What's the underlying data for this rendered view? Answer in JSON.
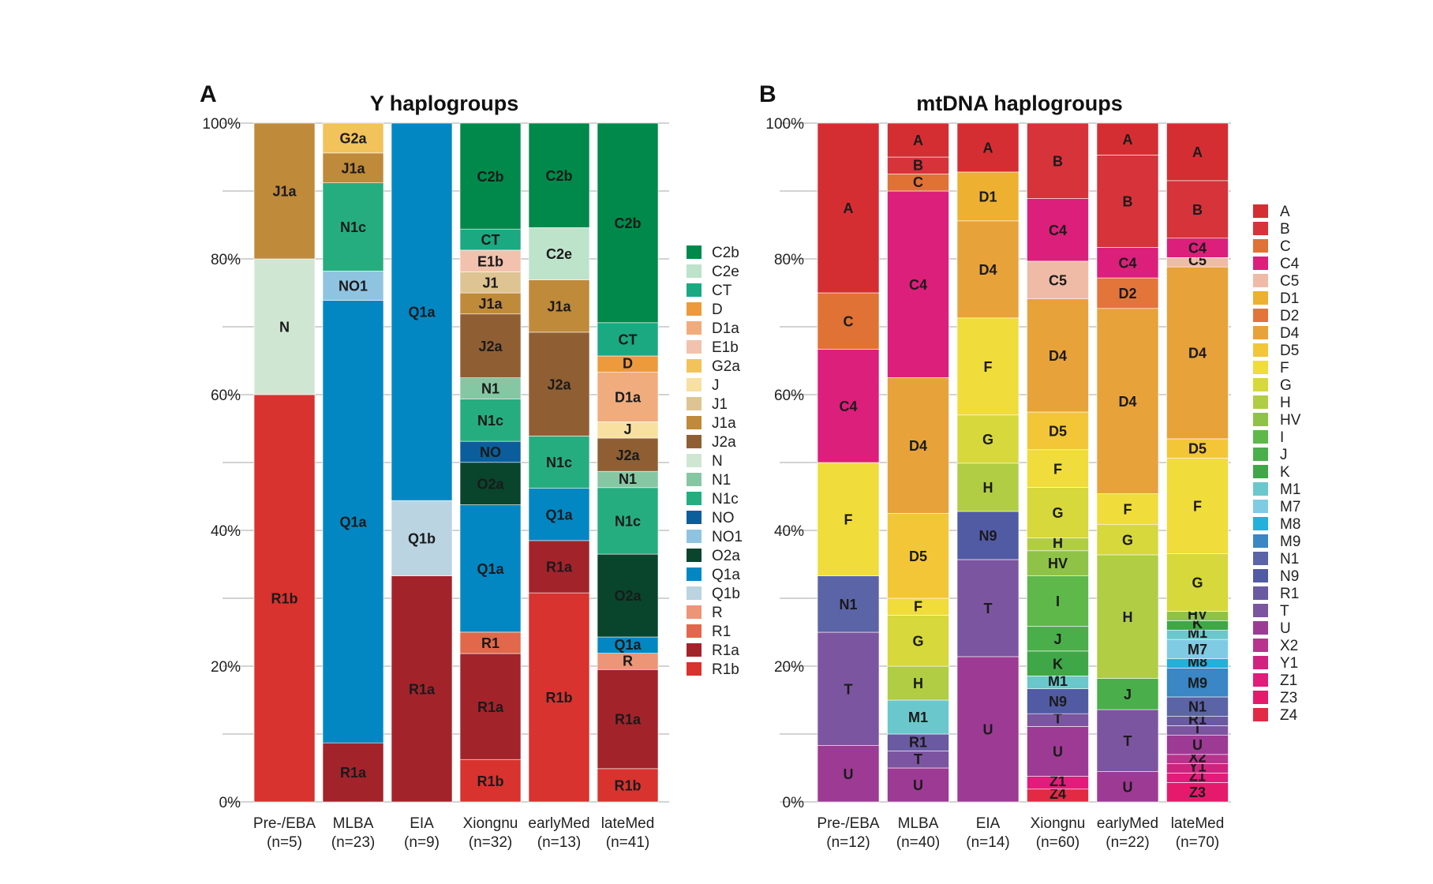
{
  "chart_data": [
    {
      "type": "bar",
      "stacked": true,
      "panel": "A",
      "title": "Y haplogroups",
      "ylim": [
        0,
        100
      ],
      "yticks": [
        "0%",
        "20%",
        "40%",
        "60%",
        "80%",
        "100%"
      ],
      "categories": [
        {
          "label": "Pre-/EBA",
          "n": "(n=5)"
        },
        {
          "label": "MLBA",
          "n": "(n=23)"
        },
        {
          "label": "EIA",
          "n": "(n=9)"
        },
        {
          "label": "Xiongnu",
          "n": "(n=32)"
        },
        {
          "label": "earlyMed",
          "n": "(n=13)"
        },
        {
          "label": "lateMed",
          "n": "(n=41)"
        }
      ],
      "legend": [
        "C2b",
        "C2e",
        "CT",
        "D",
        "D1a",
        "E1b",
        "G2a",
        "J",
        "J1",
        "J1a",
        "J2a",
        "N",
        "N1",
        "N1c",
        "NO",
        "NO1",
        "O2a",
        "Q1a",
        "Q1b",
        "R",
        "R1",
        "R1a",
        "R1b"
      ],
      "colors": {
        "C2b": "#00894a",
        "C2e": "#bde3cb",
        "CT": "#1aa980",
        "D": "#ec9a3c",
        "D1a": "#f1ac7e",
        "E1b": "#f2c2ae",
        "G2a": "#f2c25b",
        "J": "#f8e0a0",
        "J1": "#dec492",
        "J1a": "#bf8a3a",
        "J2a": "#8f5f33",
        "N": "#cfe6d3",
        "N1": "#86c7a3",
        "N1c": "#26ad7f",
        "NO": "#0b5e9c",
        "NO1": "#8fc4e1",
        "O2a": "#08452c",
        "Q1a": "#0387c3",
        "Q1b": "#bad4e1",
        "R": "#ed9577",
        "R1": "#e1684a",
        "R1a": "#a3232b",
        "R1b": "#d8332f"
      },
      "series": [
        [
          {
            "g": "R1b",
            "v": 60
          },
          {
            "g": "N",
            "v": 20
          },
          {
            "g": "J1a",
            "v": 20
          }
        ],
        [
          {
            "g": "R1a",
            "v": 8.7
          },
          {
            "g": "Q1a",
            "v": 65.2
          },
          {
            "g": "NO1",
            "v": 4.3
          },
          {
            "g": "N1c",
            "v": 13.0
          },
          {
            "g": "J1a",
            "v": 4.4
          },
          {
            "g": "G2a",
            "v": 4.4
          }
        ],
        [
          {
            "g": "R1a",
            "v": 33.3
          },
          {
            "g": "Q1b",
            "v": 11.1
          },
          {
            "g": "Q1a",
            "v": 55.6
          }
        ],
        [
          {
            "g": "R1b",
            "v": 6.25
          },
          {
            "g": "R1a",
            "v": 15.6
          },
          {
            "g": "R1",
            "v": 3.15
          },
          {
            "g": "Q1a",
            "v": 18.75
          },
          {
            "g": "O2a",
            "v": 6.25
          },
          {
            "g": "NO",
            "v": 3.1
          },
          {
            "g": "N1c",
            "v": 6.25
          },
          {
            "g": "N1",
            "v": 3.1
          },
          {
            "g": "J2a",
            "v": 9.4
          },
          {
            "g": "J1a",
            "v": 3.1
          },
          {
            "g": "J1",
            "v": 3.1
          },
          {
            "g": "E1b",
            "v": 3.2
          },
          {
            "g": "CT",
            "v": 3.1
          },
          {
            "g": "C2b",
            "v": 15.6
          }
        ],
        [
          {
            "g": "R1b",
            "v": 30.8
          },
          {
            "g": "R1a",
            "v": 7.7
          },
          {
            "g": "Q1a",
            "v": 7.7
          },
          {
            "g": "N1c",
            "v": 7.7
          },
          {
            "g": "J2a",
            "v": 15.3
          },
          {
            "g": "J1a",
            "v": 7.7
          },
          {
            "g": "C2e",
            "v": 7.7
          },
          {
            "g": "C2b",
            "v": 15.4
          }
        ],
        [
          {
            "g": "R1b",
            "v": 4.9
          },
          {
            "g": "R1a",
            "v": 14.6
          },
          {
            "g": "R",
            "v": 2.4
          },
          {
            "g": "Q1a",
            "v": 2.4
          },
          {
            "g": "O2a",
            "v": 12.2
          },
          {
            "g": "N1c",
            "v": 9.8
          },
          {
            "g": "N1",
            "v": 2.4
          },
          {
            "g": "J2a",
            "v": 4.9
          },
          {
            "g": "J",
            "v": 2.4
          },
          {
            "g": "D1a",
            "v": 7.3
          },
          {
            "g": "D",
            "v": 2.4
          },
          {
            "g": "CT",
            "v": 4.9
          },
          {
            "g": "C2b",
            "v": 29.4
          }
        ]
      ]
    },
    {
      "type": "bar",
      "stacked": true,
      "panel": "B",
      "title": "mtDNA haplogroups",
      "ylim": [
        0,
        100
      ],
      "yticks": [
        "0%",
        "20%",
        "40%",
        "60%",
        "80%",
        "100%"
      ],
      "categories": [
        {
          "label": "Pre-/EBA",
          "n": "(n=12)"
        },
        {
          "label": "MLBA",
          "n": "(n=40)"
        },
        {
          "label": "EIA",
          "n": "(n=14)"
        },
        {
          "label": "Xiongnu",
          "n": "(n=60)"
        },
        {
          "label": "earlyMed",
          "n": "(n=22)"
        },
        {
          "label": "lateMed",
          "n": "(n=70)"
        }
      ],
      "legend": [
        "A",
        "B",
        "C",
        "C4",
        "C5",
        "D1",
        "D2",
        "D4",
        "D5",
        "F",
        "G",
        "H",
        "HV",
        "I",
        "J",
        "K",
        "M1",
        "M7",
        "M8",
        "M9",
        "N1",
        "N9",
        "R1",
        "T",
        "U",
        "X2",
        "Y1",
        "Z1",
        "Z3",
        "Z4"
      ],
      "colors": {
        "A": "#d42e32",
        "B": "#d6333a",
        "C": "#e07235",
        "C4": "#dc1f7b",
        "C5": "#efbba6",
        "D1": "#edb030",
        "D2": "#e4753a",
        "D4": "#e8a23a",
        "D5": "#f2c637",
        "F": "#f0dc3a",
        "G": "#d6d83c",
        "H": "#b0cd44",
        "HV": "#8fc347",
        "I": "#5fb84a",
        "J": "#4aaf4a",
        "K": "#3fa747",
        "M1": "#6ac8cc",
        "M7": "#7fcbe3",
        "M8": "#23b0da",
        "M9": "#3b86c4",
        "N1": "#5a64a6",
        "N9": "#515ba4",
        "R1": "#6a5aa2",
        "T": "#7c55a0",
        "U": "#9d3a94",
        "X2": "#b8338c",
        "Y1": "#d0237f",
        "Z1": "#e11c7a",
        "Z3": "#e51a6c",
        "Z4": "#e22a45"
      },
      "series": [
        [
          {
            "g": "U",
            "v": 8.3
          },
          {
            "g": "T",
            "v": 16.7
          },
          {
            "g": "N1",
            "v": 8.3
          },
          {
            "g": "F",
            "v": 16.7
          },
          {
            "g": "C4",
            "v": 16.7
          },
          {
            "g": "C",
            "v": 8.3
          },
          {
            "g": "A",
            "v": 25
          }
        ],
        [
          {
            "g": "U",
            "v": 5
          },
          {
            "g": "T",
            "v": 2.5
          },
          {
            "g": "R1",
            "v": 2.5
          },
          {
            "g": "M1",
            "v": 5
          },
          {
            "g": "H",
            "v": 5
          },
          {
            "g": "G",
            "v": 7.5
          },
          {
            "g": "F",
            "v": 2.5
          },
          {
            "g": "D5",
            "v": 12.5
          },
          {
            "g": "D4",
            "v": 20
          },
          {
            "g": "C4",
            "v": 27.5
          },
          {
            "g": "C",
            "v": 2.5
          },
          {
            "g": "B",
            "v": 2.5
          },
          {
            "g": "A",
            "v": 5
          }
        ],
        [
          {
            "g": "U",
            "v": 21.4
          },
          {
            "g": "T",
            "v": 14.3
          },
          {
            "g": "N9",
            "v": 7.1
          },
          {
            "g": "H",
            "v": 7.1
          },
          {
            "g": "G",
            "v": 7.1
          },
          {
            "g": "F",
            "v": 14.3
          },
          {
            "g": "D4",
            "v": 14.3
          },
          {
            "g": "D1",
            "v": 7.2
          },
          {
            "g": "A",
            "v": 7.2
          }
        ],
        [
          {
            "g": "Z4",
            "v": 1.7
          },
          {
            "g": "Z1",
            "v": 1.7
          },
          {
            "g": "U",
            "v": 6.6
          },
          {
            "g": "T",
            "v": 1.7
          },
          {
            "g": "N9",
            "v": 3.3
          },
          {
            "g": "M1",
            "v": 1.7
          },
          {
            "g": "K",
            "v": 3.3
          },
          {
            "g": "J",
            "v": 3.3
          },
          {
            "g": "I",
            "v": 6.7
          },
          {
            "g": "HV",
            "v": 3.3
          },
          {
            "g": "H",
            "v": 1.7
          },
          {
            "g": "G",
            "v": 6.7
          },
          {
            "g": "F",
            "v": 5
          },
          {
            "g": "D5",
            "v": 5
          },
          {
            "g": "D4",
            "v": 15
          },
          {
            "g": "C5",
            "v": 5
          },
          {
            "g": "C4",
            "v": 8.3
          },
          {
            "g": "B",
            "v": 10
          }
        ],
        [
          {
            "g": "U",
            "v": 4.5
          },
          {
            "g": "T",
            "v": 9.1
          },
          {
            "g": "J",
            "v": 4.6
          },
          {
            "g": "H",
            "v": 18.2
          },
          {
            "g": "G",
            "v": 4.5
          },
          {
            "g": "F",
            "v": 4.5
          },
          {
            "g": "D4",
            "v": 27.3
          },
          {
            "g": "D2",
            "v": 4.5
          },
          {
            "g": "C4",
            "v": 4.5
          },
          {
            "g": "B",
            "v": 13.6
          },
          {
            "g": "A",
            "v": 4.7
          }
        ],
        [
          {
            "g": "Z3",
            "v": 2.9
          },
          {
            "g": "Z1",
            "v": 1.4
          },
          {
            "g": "Y1",
            "v": 1.4
          },
          {
            "g": "X2",
            "v": 1.4
          },
          {
            "g": "U",
            "v": 2.9
          },
          {
            "g": "T",
            "v": 1.4
          },
          {
            "g": "R1",
            "v": 1.4
          },
          {
            "g": "N1",
            "v": 2.9
          },
          {
            "g": "M9",
            "v": 4.3
          },
          {
            "g": "M8",
            "v": 1.4
          },
          {
            "g": "M7",
            "v": 2.9
          },
          {
            "g": "M1",
            "v": 1.4
          },
          {
            "g": "K",
            "v": 1.4
          },
          {
            "g": "HV",
            "v": 1.4
          },
          {
            "g": "G",
            "v": 8.6
          },
          {
            "g": "F",
            "v": 14.3
          },
          {
            "g": "D5",
            "v": 2.9
          },
          {
            "g": "D4",
            "v": 25.7
          },
          {
            "g": "C5",
            "v": 1.4
          },
          {
            "g": "C4",
            "v": 2.9
          },
          {
            "g": "B",
            "v": 8.6
          },
          {
            "g": "A",
            "v": 8.6
          }
        ]
      ]
    }
  ]
}
